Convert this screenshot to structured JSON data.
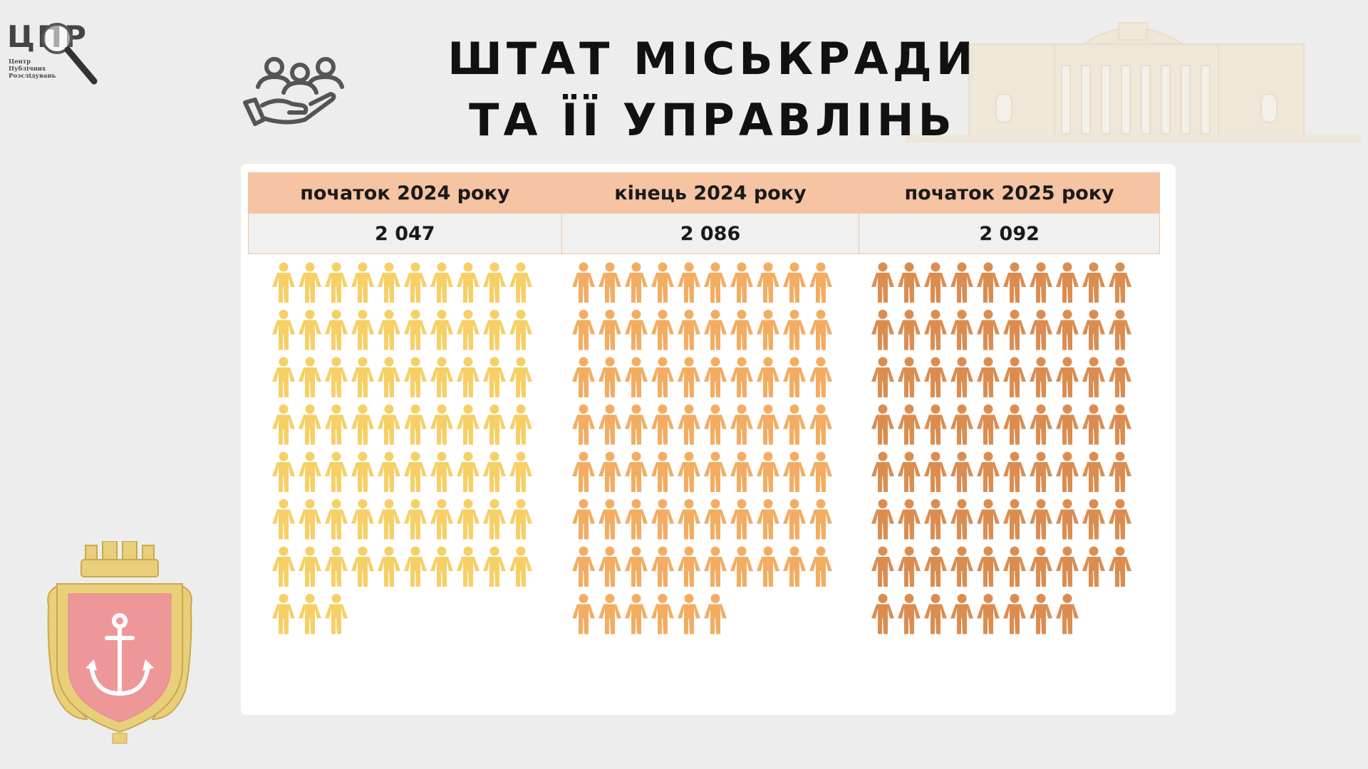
{
  "logo": {
    "letters": "ЦПР",
    "subtitle_lines": [
      "Центр",
      "Публічних",
      "Розслідувань"
    ]
  },
  "title": {
    "line1": "ШТАТ МІСЬКРАДИ",
    "line2": "ТА ЇЇ УПРАВЛІНЬ"
  },
  "icons": {
    "logo_glass": "magnifier-icon",
    "people": "people-in-hand-icon",
    "building": "city-hall-building",
    "coat_of_arms": "odesa-coat-of-arms"
  },
  "chart_data": {
    "type": "table",
    "categories": [
      "початок 2024 року",
      "кінець 2024 року",
      "початок 2025 року"
    ],
    "values": [
      2047,
      2086,
      2092
    ],
    "value_labels": [
      "2 047",
      "2 086",
      "2 092"
    ],
    "pictogram_counts": [
      73,
      76,
      78
    ],
    "colors": [
      "#f6cf66",
      "#f2ad63",
      "#db8d51"
    ],
    "header_color": "#f7c4a3"
  }
}
